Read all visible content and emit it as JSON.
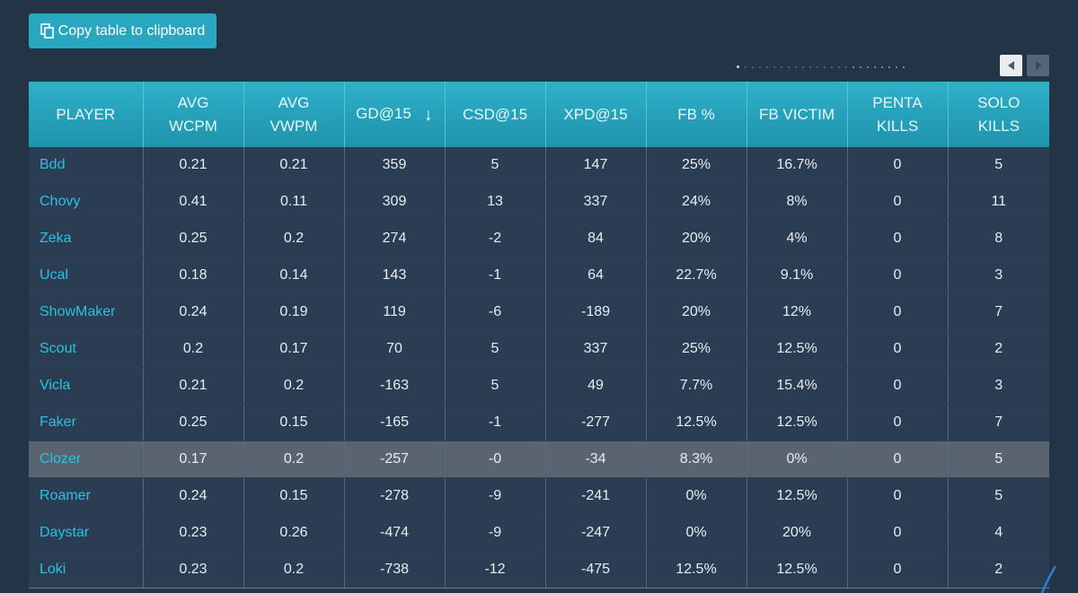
{
  "toolbar": {
    "copy_label": "Copy table to clipboard",
    "copy_icon": "clipboard-icon"
  },
  "scroll": {
    "left_icon": "triangle-left-icon",
    "right_icon": "triangle-right-icon"
  },
  "table": {
    "columns": [
      {
        "line1": "PLAYER",
        "line2": ""
      },
      {
        "line1": "AVG",
        "line2": "WCPM"
      },
      {
        "line1": "AVG",
        "line2": "VWPM"
      },
      {
        "line1": "GD@15",
        "line2": "",
        "sort": "↓"
      },
      {
        "line1": "CSD@15",
        "line2": ""
      },
      {
        "line1": "XPD@15",
        "line2": ""
      },
      {
        "line1": "FB %",
        "line2": ""
      },
      {
        "line1": "FB VICTIM",
        "line2": ""
      },
      {
        "line1": "PENTA",
        "line2": "KILLS"
      },
      {
        "line1": "SOLO",
        "line2": "KILLS"
      }
    ],
    "rows": [
      [
        "Bdd",
        "0.21",
        "0.21",
        "359",
        "5",
        "147",
        "25%",
        "16.7%",
        "0",
        "5"
      ],
      [
        "Chovy",
        "0.41",
        "0.11",
        "309",
        "13",
        "337",
        "24%",
        "8%",
        "0",
        "11"
      ],
      [
        "Zeka",
        "0.25",
        "0.2",
        "274",
        "-2",
        "84",
        "20%",
        "4%",
        "0",
        "8"
      ],
      [
        "Ucal",
        "0.18",
        "0.14",
        "143",
        "-1",
        "64",
        "22.7%",
        "9.1%",
        "0",
        "3"
      ],
      [
        "ShowMaker",
        "0.24",
        "0.19",
        "119",
        "-6",
        "-189",
        "20%",
        "12%",
        "0",
        "7"
      ],
      [
        "Scout",
        "0.2",
        "0.17",
        "70",
        "5",
        "337",
        "25%",
        "12.5%",
        "0",
        "2"
      ],
      [
        "Vicla",
        "0.21",
        "0.2",
        "-163",
        "5",
        "49",
        "7.7%",
        "15.4%",
        "0",
        "3"
      ],
      [
        "Faker",
        "0.25",
        "0.15",
        "-165",
        "-1",
        "-277",
        "12.5%",
        "12.5%",
        "0",
        "7"
      ],
      [
        "Clozer",
        "0.17",
        "0.2",
        "-257",
        "-0",
        "-34",
        "8.3%",
        "0%",
        "0",
        "5"
      ],
      [
        "Roamer",
        "0.24",
        "0.15",
        "-278",
        "-9",
        "-241",
        "0%",
        "12.5%",
        "0",
        "5"
      ],
      [
        "Daystar",
        "0.23",
        "0.26",
        "-474",
        "-9",
        "-247",
        "0%",
        "20%",
        "0",
        "4"
      ],
      [
        "Loki",
        "0.23",
        "0.2",
        "-738",
        "-12",
        "-475",
        "12.5%",
        "12.5%",
        "0",
        "2"
      ]
    ],
    "highlighted_row": 8
  },
  "colors": {
    "background": "#243447",
    "accent": "#2aa7c0",
    "player_link": "#29c2e0",
    "row_bg": "#2b3d52",
    "highlight_bg": "#5a6470"
  }
}
